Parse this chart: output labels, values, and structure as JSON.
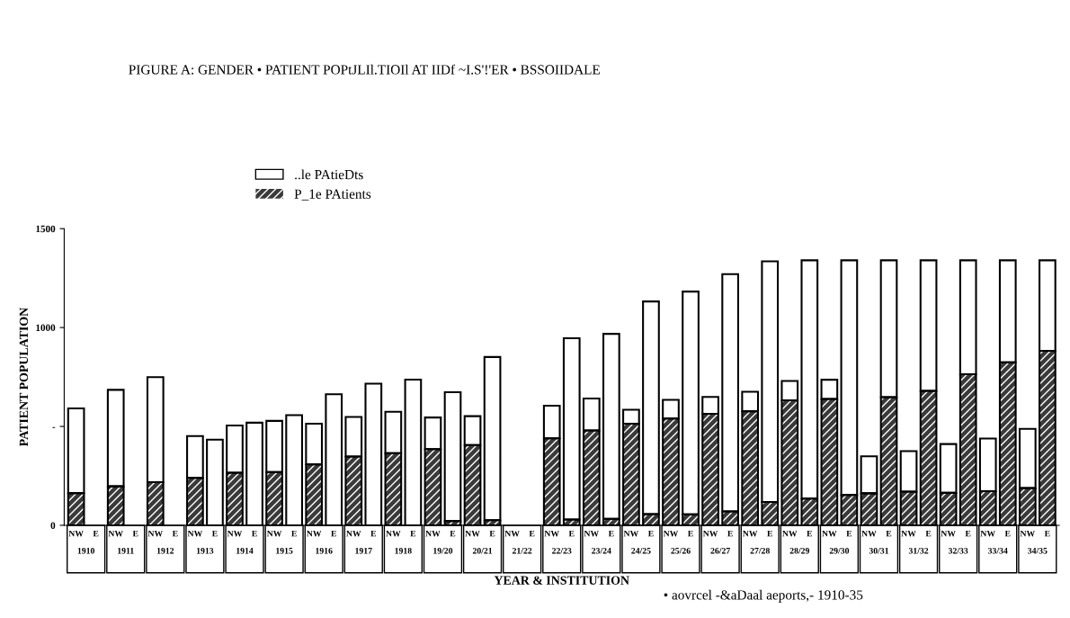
{
  "chart_data": {
    "type": "bar",
    "stacked": true,
    "title": "PIGURE A: GENDER • PATIENT POPtJLIl.TIOIl AT IIDf ~I.S'!'ER • BSSOIIDALE",
    "xlabel": "YEAR & INSTITUTION",
    "ylabel": "PATIENT POPULATION",
    "categories": [
      "NW",
      "E",
      "NW",
      "E",
      "NW",
      "E",
      "NW",
      "E",
      "NW",
      "E",
      "NW",
      "E",
      "NW",
      "E",
      "NW",
      "E",
      "NW",
      "E",
      "NW",
      "E",
      "NW",
      "E",
      "NW",
      "E",
      "NW",
      "E",
      "NW",
      "E",
      "NW",
      "E",
      "NW",
      "E",
      "NW",
      "E",
      "NW",
      "E",
      "NW",
      "E",
      "NW",
      "E",
      "NW",
      "E",
      "NW",
      "E",
      "NW",
      "E",
      "NW",
      "E",
      "NW",
      "E"
    ],
    "series": [
      {
        "name": "P_1e PAtients",
        "color": "#3a3a3a",
        "values": [
          163,
          null,
          197,
          null,
          218,
          null,
          240,
          0,
          266,
          0,
          269,
          0,
          308,
          0,
          348,
          0,
          365,
          0,
          385,
          22,
          406,
          26,
          null,
          null,
          440,
          29,
          480,
          33,
          514,
          57,
          540,
          55,
          564,
          70,
          577,
          118,
          632,
          135,
          639,
          154,
          162,
          648,
          170,
          680,
          164,
          764,
          173,
          824,
          188,
          882
        ]
      },
      {
        "name": "..le PAtieDts",
        "color": "#ffffff",
        "values": [
          428,
          null,
          488,
          null,
          531,
          null,
          211,
          433,
          239,
          519,
          259,
          557,
          206,
          663,
          200,
          716,
          209,
          737,
          160,
          651,
          146,
          825,
          null,
          null,
          165,
          917,
          161,
          935,
          70,
          1075,
          94,
          1127,
          85,
          1200,
          98,
          1217,
          98,
          1205,
          97,
          1186,
          187,
          692,
          205,
          660,
          247,
          576,
          266,
          516,
          300,
          458
        ]
      }
    ],
    "ylim": [
      0,
      1500
    ],
    "yticks": [
      0,
      {
        "value": 500,
        "label": "-"
      },
      1000,
      1500
    ],
    "legend": "top left",
    "grid": false,
    "annotations": [
      "1910",
      "1911",
      "1912",
      "1913",
      "1914",
      "1915",
      "1916",
      "1917",
      "1918",
      "19/20",
      "20/21",
      "21/22",
      "22/23",
      "23/24",
      "24/25",
      "25/26",
      "26/27",
      "27/28",
      "28/29",
      "29/30",
      "30/31",
      "31/32",
      "32/33",
      "33/34",
      "34/35",
      "• aovrcel -&aDaal aeports,- 1910-35"
    ]
  }
}
